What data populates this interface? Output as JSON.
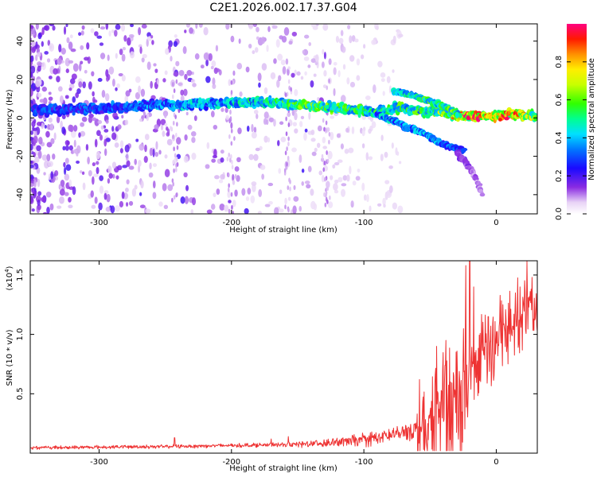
{
  "title": "C2E1.2026.002.17.37.G04",
  "chart_data": [
    {
      "type": "heatmap",
      "name": "spectrogram",
      "xlabel": "Height of straight line (km)",
      "ylabel": "Frequency (Hz)",
      "xlim": [
        -352,
        31
      ],
      "ylim": [
        -50,
        49
      ],
      "xticks": [
        -300,
        -200,
        -100,
        0
      ],
      "yticks": [
        -40,
        -20,
        0,
        20,
        40
      ],
      "colorbar": {
        "label": "Normalized spectral amplitude",
        "range": [
          0.0,
          1.0
        ],
        "ticks": [
          "0.0",
          "0.2",
          "0.4",
          "0.6",
          "0.8"
        ],
        "tick_values": [
          0.0,
          0.2,
          0.4,
          0.6,
          0.8
        ]
      },
      "ridges": [
        {
          "name": "main-ridge",
          "points": [
            [
              -350,
              4,
              0.3
            ],
            [
              -300,
              5,
              0.32
            ],
            [
              -260,
              6,
              0.38
            ],
            [
              -230,
              7,
              0.42
            ],
            [
              -200,
              8,
              0.45
            ],
            [
              -170,
              8,
              0.55
            ],
            [
              -150,
              7,
              0.6
            ],
            [
              -130,
              6,
              0.62
            ],
            [
              -110,
              4,
              0.55
            ],
            [
              -90,
              3,
              0.55
            ],
            [
              -75,
              5,
              0.55
            ],
            [
              -60,
              4,
              0.55
            ],
            [
              -45,
              3,
              0.6
            ],
            [
              -30,
              1,
              0.8
            ],
            [
              -15,
              1,
              0.95
            ],
            [
              0,
              1,
              0.75
            ],
            [
              10,
              2,
              0.92
            ],
            [
              30,
              1,
              0.7
            ]
          ]
        },
        {
          "name": "upper-branch",
          "points": [
            [
              -78,
              14,
              0.5
            ],
            [
              -65,
              12,
              0.55
            ],
            [
              -52,
              9,
              0.55
            ],
            [
              -40,
              6,
              0.55
            ],
            [
              -28,
              2,
              0.6
            ]
          ]
        },
        {
          "name": "lower-branch",
          "points": [
            [
              -90,
              2,
              0.4
            ],
            [
              -80,
              -1,
              0.45
            ],
            [
              -70,
              -4,
              0.4
            ],
            [
              -55,
              -8,
              0.4
            ],
            [
              -45,
              -12,
              0.4
            ],
            [
              -35,
              -15,
              0.35
            ],
            [
              -25,
              -17,
              0.3
            ]
          ]
        },
        {
          "name": "tail",
          "points": [
            [
              -30,
              -18,
              0.2
            ],
            [
              -22,
              -24,
              0.15
            ],
            [
              -15,
              -32,
              0.12
            ],
            [
              -10,
              -40,
              0.1
            ]
          ]
        }
      ]
    },
    {
      "type": "line",
      "name": "snr",
      "xlabel": "Height of straight line (km)",
      "ylabel": "SNR (10 * v/v)",
      "y_multiplier": "(x10",
      "y_multiplier_exp": "4",
      "y_multiplier_close": ")",
      "xlim": [
        -352,
        31
      ],
      "ylim": [
        0,
        1.62
      ],
      "xticks": [
        -300,
        -200,
        -100,
        0
      ],
      "yticks": [
        0.5,
        1.0,
        1.5
      ],
      "ytick_labels": [
        "0.5",
        "1.0",
        "1.5"
      ],
      "color": "#ee3333",
      "envelope": [
        [
          -352,
          0.05
        ],
        [
          -300,
          0.055
        ],
        [
          -250,
          0.06
        ],
        [
          -200,
          0.07
        ],
        [
          -150,
          0.08
        ],
        [
          -120,
          0.1
        ],
        [
          -100,
          0.12
        ],
        [
          -80,
          0.16
        ],
        [
          -60,
          0.22
        ],
        [
          -55,
          0.4
        ],
        [
          -45,
          0.5
        ],
        [
          -35,
          0.6
        ],
        [
          -25,
          0.75
        ],
        [
          -20,
          0.85
        ],
        [
          -15,
          0.9
        ],
        [
          -10,
          0.95
        ],
        [
          0,
          1.05
        ],
        [
          10,
          1.2
        ],
        [
          20,
          1.35
        ],
        [
          31,
          1.42
        ]
      ],
      "spikes": [
        [
          -243,
          0.13
        ],
        [
          -170,
          0.12
        ],
        [
          -157,
          0.14
        ],
        [
          -101,
          0.17
        ],
        [
          -58,
          0.62
        ],
        [
          -45,
          0.9
        ],
        [
          -38,
          0.95
        ],
        [
          -23,
          1.58
        ],
        [
          -20,
          1.62
        ],
        [
          -17,
          1.4
        ],
        [
          -6,
          1.15
        ],
        [
          5,
          1.25
        ],
        [
          18,
          1.4
        ],
        [
          27,
          1.48
        ]
      ]
    }
  ]
}
